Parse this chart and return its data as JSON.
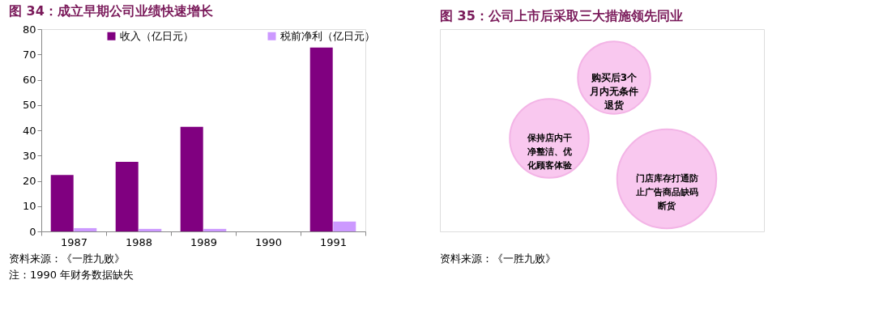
{
  "chart_data": [
    {
      "type": "bar",
      "title": "图 34：成立早期公司业绩快速增长",
      "categories": [
        "1987",
        "1988",
        "1989",
        "1990",
        "1991"
      ],
      "series": [
        {
          "name": "收入（亿日元）",
          "color": "#800080",
          "values": [
            22.3,
            27.5,
            41.4,
            null,
            72.7
          ]
        },
        {
          "name": "税前净利（亿日元）",
          "color": "#cc99ff",
          "values": [
            1.3,
            1.0,
            1.0,
            null,
            3.9
          ]
        }
      ],
      "ylim": [
        0,
        80
      ],
      "yticks": [
        0,
        10,
        20,
        30,
        40,
        50,
        60,
        70,
        80
      ],
      "grid": false,
      "legend": "top",
      "annotations": [
        "资料来源：《一胜九败》",
        "注：1990 年财务数据缺失"
      ]
    },
    {
      "type": "other",
      "title": "图 35：公司上市后采取三大措施领先同业",
      "annotations": [
        "购买后3个月内无条件退货",
        "保持店内干净整洁、优化顾客体验",
        "门店库存打通防止广告商品缺码断货",
        "资料来源：《一胜九败》"
      ]
    }
  ]
}
